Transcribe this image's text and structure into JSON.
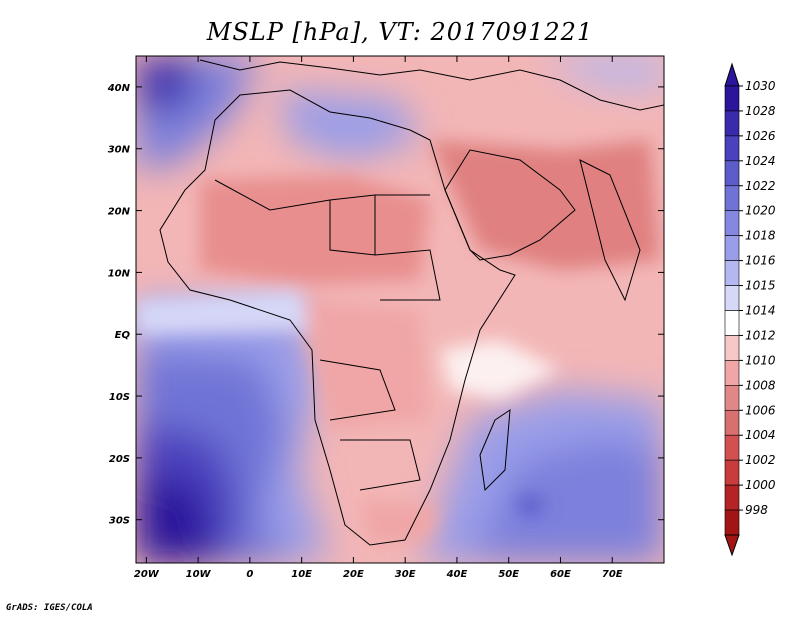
{
  "title": "MSLP [hPa], VT: 2017091221",
  "credit": "GrADS: IGES/COLA",
  "map": {
    "lon_range": [
      -22,
      80
    ],
    "lat_range": [
      -37,
      45
    ],
    "x_ticks": [
      "20W",
      "10W",
      "0",
      "10E",
      "20E",
      "30E",
      "40E",
      "50E",
      "60E",
      "70E"
    ],
    "x_tick_lons": [
      -20,
      -10,
      0,
      10,
      20,
      30,
      40,
      50,
      60,
      70
    ],
    "y_ticks": [
      "40N",
      "30N",
      "20N",
      "10N",
      "EQ",
      "10S",
      "20S",
      "30S"
    ],
    "y_tick_lats": [
      40,
      30,
      20,
      10,
      0,
      -10,
      -20,
      -30
    ]
  },
  "colorbar": {
    "labels": [
      "1030",
      "1028",
      "1026",
      "1024",
      "1022",
      "1020",
      "1018",
      "1016",
      "1015",
      "1014",
      "1012",
      "1010",
      "1008",
      "1006",
      "1004",
      "1002",
      "1000",
      "998"
    ],
    "colors": [
      "#2c149b",
      "#3a2aac",
      "#4b40bd",
      "#5c5ccb",
      "#6f73d6",
      "#8587e0",
      "#9a9de8",
      "#b5b8f0",
      "#d6d8f8",
      "#ffffff",
      "#f8c8c8",
      "#f0a6a6",
      "#e08888",
      "#d87070",
      "#d35050",
      "#c83c3c",
      "#b52424",
      "#a31515"
    ]
  }
}
